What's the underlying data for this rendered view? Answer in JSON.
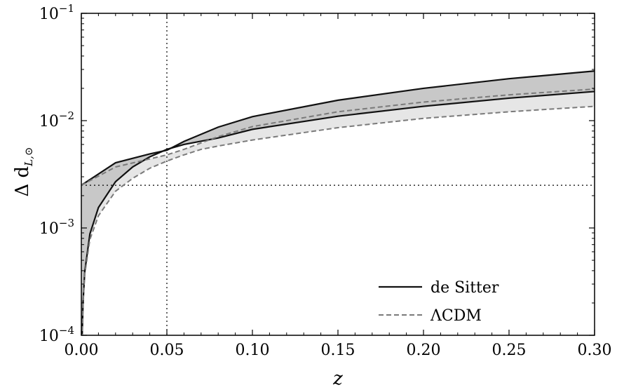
{
  "chart_data": {
    "type": "line",
    "xlabel": "z",
    "ylabel": "Δ d",
    "ylabel_sub": "L,⊙",
    "xlim": [
      0.0,
      0.3
    ],
    "ylim_log10": [
      -4,
      -1
    ],
    "yscale": "log",
    "x_ticks": [
      "0.00",
      "0.05",
      "0.10",
      "0.15",
      "0.20",
      "0.25",
      "0.30"
    ],
    "x_tick_values": [
      0.0,
      0.05,
      0.1,
      0.15,
      0.2,
      0.25,
      0.3
    ],
    "y_ticks": [
      {
        "base": "10",
        "exp": "−4",
        "value": 0.0001
      },
      {
        "base": "10",
        "exp": "−3",
        "value": 0.001
      },
      {
        "base": "10",
        "exp": "−2",
        "value": 0.01
      },
      {
        "base": "10",
        "exp": "−1",
        "value": 0.1
      }
    ],
    "reference_lines": {
      "x": 0.05,
      "y": 0.0025
    },
    "grid": false,
    "legend_position": "bottom-right",
    "series": [
      {
        "name": "de Sitter",
        "style": "solid",
        "color": "#111111",
        "fill": "#c8c8c8",
        "upper": {
          "x": [
            0.0,
            0.02,
            0.04,
            0.05,
            0.06,
            0.08,
            0.1,
            0.15,
            0.2,
            0.25,
            0.3
          ],
          "y": [
            0.0025,
            0.00405,
            0.0049,
            0.0053,
            0.0064,
            0.0087,
            0.0109,
            0.0155,
            0.02,
            0.0246,
            0.029
          ]
        },
        "lower": {
          "x": [
            0.0005,
            0.001,
            0.002,
            0.005,
            0.01,
            0.02,
            0.03,
            0.04,
            0.05,
            0.06,
            0.08,
            0.1,
            0.15,
            0.2,
            0.25,
            0.3
          ],
          "y": [
            0.0001,
            0.0002,
            0.00039,
            0.00088,
            0.00155,
            0.0027,
            0.0037,
            0.0046,
            0.0054,
            0.006,
            0.0069,
            0.0083,
            0.011,
            0.0136,
            0.0162,
            0.0187
          ]
        }
      },
      {
        "name": "ΛCDM",
        "style": "dashed",
        "color": "#7a7a7a",
        "fill": "#e6e6e6",
        "upper": {
          "x": [
            0.0,
            0.02,
            0.04,
            0.05,
            0.06,
            0.07,
            0.08,
            0.1,
            0.15,
            0.2,
            0.25,
            0.3
          ],
          "y": [
            0.0025,
            0.0037,
            0.0044,
            0.0048,
            0.0054,
            0.0062,
            0.0071,
            0.0088,
            0.0121,
            0.0149,
            0.0174,
            0.0197
          ]
        },
        "lower": {
          "x": [
            0.0005,
            0.001,
            0.002,
            0.005,
            0.01,
            0.02,
            0.03,
            0.04,
            0.05,
            0.06,
            0.07,
            0.08,
            0.1,
            0.15,
            0.2,
            0.25,
            0.3
          ],
          "y": [
            0.0001,
            0.000195,
            0.00037,
            0.00078,
            0.0013,
            0.0022,
            0.0029,
            0.0036,
            0.0042,
            0.0048,
            0.0054,
            0.0058,
            0.0066,
            0.0086,
            0.0105,
            0.0121,
            0.0136
          ]
        }
      }
    ]
  }
}
